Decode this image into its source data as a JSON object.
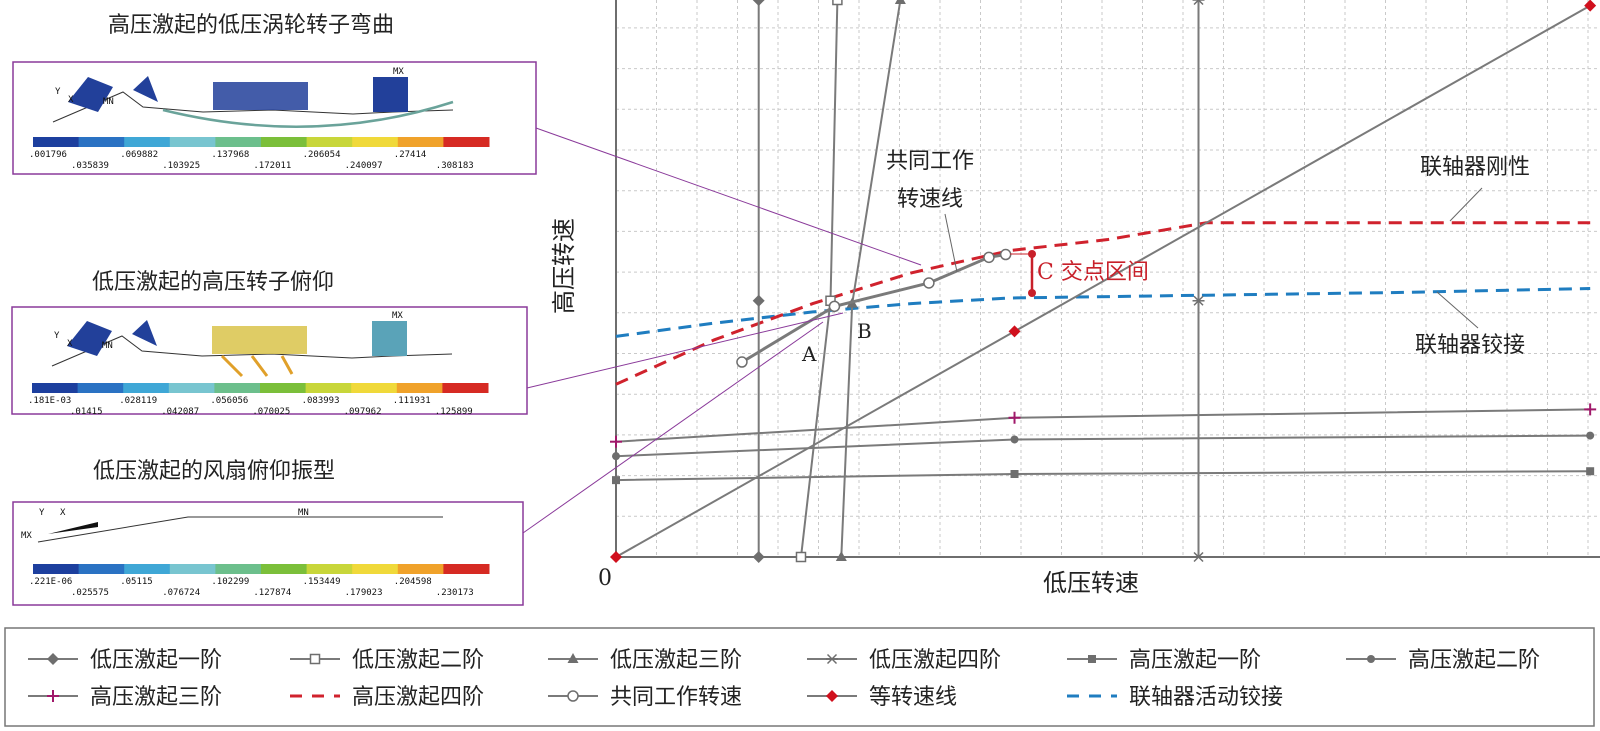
{
  "chart_data": {
    "type": "line",
    "title": "",
    "xlabel": "低压转速",
    "ylabel": "高压转速",
    "origin_label": "0",
    "grid": true,
    "annotations": {
      "common_line": [
        "共同工作",
        "转速线"
      ],
      "coupling_rigid": "联轴器刚性",
      "coupling_hinge": "联轴器铰接",
      "point_a": "A",
      "point_b": "B",
      "interval": "C 交点区间"
    },
    "series": [
      {
        "name": "低压激起一阶",
        "marker": "diamond-filled",
        "line": "solid",
        "color": "#7a7a7a",
        "points": [
          [
            0.145,
            0
          ],
          [
            0.145,
            0.46
          ],
          [
            0.145,
            1
          ]
        ]
      },
      {
        "name": "低压激起二阶",
        "marker": "square-open",
        "line": "solid",
        "color": "#7a7a7a",
        "points": [
          [
            0.188,
            0
          ],
          [
            0.218,
            0.46
          ],
          [
            0.225,
            1
          ]
        ]
      },
      {
        "name": "低压激起三阶",
        "marker": "triangle-filled",
        "line": "solid",
        "color": "#7a7a7a",
        "points": [
          [
            0.229,
            0
          ],
          [
            0.24,
            0.455
          ],
          [
            0.289,
            1
          ]
        ]
      },
      {
        "name": "低压激起四阶",
        "marker": "star",
        "line": "solid",
        "color": "#7a7a7a",
        "points": [
          [
            0.592,
            0
          ],
          [
            0.592,
            0.46
          ],
          [
            0.592,
            1
          ]
        ]
      },
      {
        "name": "高压激起一阶",
        "marker": "square-filled",
        "line": "solid",
        "color": "#7a7a7a",
        "points": [
          [
            0,
            0.138
          ],
          [
            0.405,
            0.149
          ],
          [
            0.99,
            0.154
          ]
        ]
      },
      {
        "name": "高压激起二阶",
        "marker": "circle-filled",
        "line": "solid",
        "color": "#7a7a7a",
        "points": [
          [
            0,
            0.181
          ],
          [
            0.405,
            0.211
          ],
          [
            0.99,
            0.218
          ]
        ]
      },
      {
        "name": "高压激起三阶",
        "marker": "plus",
        "line": "solid",
        "color": "#7a7a7a",
        "points": [
          [
            0,
            0.207
          ],
          [
            0.405,
            0.25
          ],
          [
            0.99,
            0.265
          ]
        ]
      },
      {
        "name": "高压激起四阶",
        "marker": "none",
        "line": "dashed",
        "color": "#d0222d",
        "points": [
          [
            0,
            0.31
          ],
          [
            0.1,
            0.39
          ],
          [
            0.2,
            0.455
          ],
          [
            0.3,
            0.51
          ],
          [
            0.4,
            0.55
          ],
          [
            0.5,
            0.57
          ],
          [
            0.6,
            0.6
          ],
          [
            0.7,
            0.6
          ],
          [
            0.8,
            0.6
          ],
          [
            0.99,
            0.6
          ]
        ]
      },
      {
        "name": "共同工作转速",
        "marker": "circle-open",
        "line": "solid",
        "color": "#7a7a7a",
        "points": [
          [
            0.128,
            0.35
          ],
          [
            0.222,
            0.45
          ],
          [
            0.318,
            0.492
          ],
          [
            0.379,
            0.538
          ],
          [
            0.396,
            0.543
          ]
        ]
      },
      {
        "name": "等转速线",
        "marker": "diamond-red",
        "line": "solid",
        "color": "#7a7a7a",
        "points": [
          [
            0,
            0
          ],
          [
            0.405,
            0.405
          ],
          [
            0.99,
            0.99
          ]
        ]
      },
      {
        "name": "联轴器活动铰接",
        "marker": "none",
        "line": "dashed",
        "color": "#1f7dc0",
        "points": [
          [
            0,
            0.396
          ],
          [
            0.1,
            0.42
          ],
          [
            0.2,
            0.44
          ],
          [
            0.3,
            0.455
          ],
          [
            0.4,
            0.465
          ],
          [
            0.6,
            0.47
          ],
          [
            0.8,
            0.475
          ],
          [
            0.99,
            0.482
          ]
        ]
      }
    ]
  },
  "panels": [
    {
      "title": "高压激起的低压涡轮转子弯曲",
      "labels": [
        "MX",
        "MN",
        "X",
        "Y"
      ],
      "scale_top": [
        ".001796",
        ".069882",
        ".137968",
        ".206054",
        ".27414"
      ],
      "scale_bottom": [
        ".035839",
        ".103925",
        ".172011",
        ".240097",
        ".308183"
      ]
    },
    {
      "title": "低压激起的高压转子俯仰",
      "labels": [
        "MX",
        "MN",
        "X",
        "Y"
      ],
      "scale_top": [
        ".181E-03",
        ".028119",
        ".056056",
        ".083993",
        ".111931"
      ],
      "scale_bottom": [
        ".01415",
        ".042087",
        ".070025",
        ".097962",
        ".125899"
      ]
    },
    {
      "title": "低压激起的风扇俯仰振型",
      "labels": [
        "MX",
        "MN",
        "X",
        "Y"
      ],
      "scale_top": [
        ".221E-06",
        ".05115",
        ".102299",
        ".153449",
        ".204598"
      ],
      "scale_bottom": [
        ".025575",
        ".076724",
        ".127874",
        ".179023",
        ".230173"
      ]
    }
  ],
  "colors": {
    "scale": [
      "#1d3f9e",
      "#2a72c3",
      "#3fa7d6",
      "#78c5d0",
      "#6cbf8c",
      "#7bbf3a",
      "#c8d63a",
      "#f0d93a",
      "#f0a22a",
      "#d62a23"
    ],
    "panel_border": "#8a3a9a",
    "accent_red": "#c8202a"
  }
}
